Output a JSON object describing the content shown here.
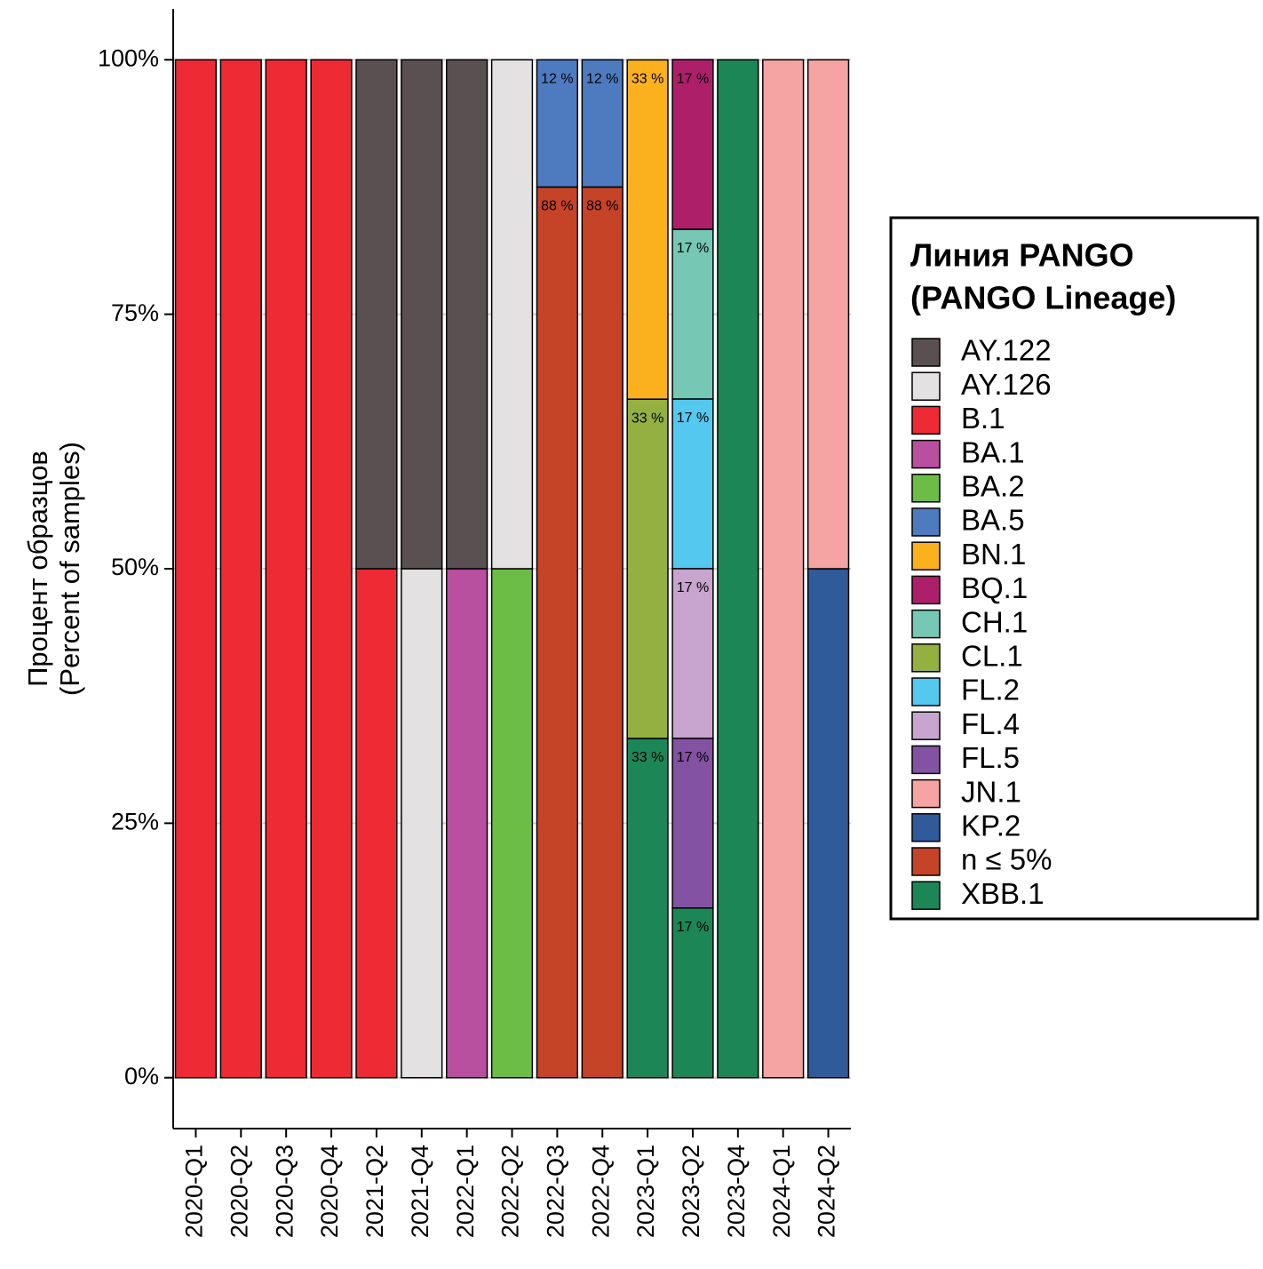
{
  "chart_data": {
    "type": "stacked_bar",
    "ylabel": [
      "Процент образцов",
      "(Percent of samples)"
    ],
    "legend_title": [
      "Линия PANGO",
      "(PANGO Lineage)"
    ],
    "legend_position": "right",
    "grid": true,
    "categories": [
      "2020-Q1",
      "2020-Q2",
      "2020-Q3",
      "2020-Q4",
      "2021-Q2",
      "2021-Q4",
      "2022-Q1",
      "2022-Q2",
      "2022-Q3",
      "2022-Q4",
      "2023-Q1",
      "2023-Q2",
      "2023-Q4",
      "2024-Q1",
      "2024-Q2"
    ],
    "ylim": [
      -5,
      105
    ],
    "yticks": [
      {
        "value": 0,
        "label": "0%"
      },
      {
        "value": 25,
        "label": "25%"
      },
      {
        "value": 50,
        "label": "50%"
      },
      {
        "value": 75,
        "label": "75%"
      },
      {
        "value": 100,
        "label": "100%"
      }
    ],
    "series": [
      {
        "name": "AY.122",
        "color": "#5a5052",
        "values": [
          0,
          0,
          0,
          0,
          50,
          50,
          50,
          0,
          0,
          0,
          0,
          0,
          0,
          0,
          0
        ]
      },
      {
        "name": "AY.126",
        "color": "#e3e1e2",
        "values": [
          0,
          0,
          0,
          0,
          0,
          50,
          0,
          50,
          0,
          0,
          0,
          0,
          0,
          0,
          0
        ]
      },
      {
        "name": "B.1",
        "color": "#ee2a35",
        "values": [
          100,
          100,
          100,
          100,
          50,
          0,
          0,
          0,
          0,
          0,
          0,
          0,
          0,
          0,
          0
        ]
      },
      {
        "name": "BA.1",
        "color": "#b94f9f",
        "values": [
          0,
          0,
          0,
          0,
          0,
          0,
          50,
          0,
          0,
          0,
          0,
          0,
          0,
          0,
          0
        ]
      },
      {
        "name": "BA.2",
        "color": "#6cbd45",
        "values": [
          0,
          0,
          0,
          0,
          0,
          0,
          0,
          50,
          0,
          0,
          0,
          0,
          0,
          0,
          0
        ]
      },
      {
        "name": "BA.5",
        "color": "#4e7bc0",
        "values": [
          0,
          0,
          0,
          0,
          0,
          0,
          0,
          0,
          12.5,
          12.5,
          0,
          0,
          0,
          0,
          0
        ],
        "value_labels": [
          null,
          null,
          null,
          null,
          null,
          null,
          null,
          null,
          "12 %",
          "12 %",
          null,
          null,
          null,
          null,
          null
        ]
      },
      {
        "name": "BN.1",
        "color": "#fbb01e",
        "values": [
          0,
          0,
          0,
          0,
          0,
          0,
          0,
          0,
          0,
          0,
          33.33,
          0,
          0,
          0,
          0
        ],
        "value_labels": [
          null,
          null,
          null,
          null,
          null,
          null,
          null,
          null,
          null,
          null,
          "33 %",
          null,
          null,
          null,
          null
        ]
      },
      {
        "name": "BQ.1",
        "color": "#ae1f6a",
        "values": [
          0,
          0,
          0,
          0,
          0,
          0,
          0,
          0,
          0,
          0,
          0,
          16.67,
          0,
          0,
          0
        ],
        "value_labels": [
          null,
          null,
          null,
          null,
          null,
          null,
          null,
          null,
          null,
          null,
          null,
          "17 %",
          null,
          null,
          null
        ]
      },
      {
        "name": "CH.1",
        "color": "#76c8b5",
        "values": [
          0,
          0,
          0,
          0,
          0,
          0,
          0,
          0,
          0,
          0,
          0,
          16.67,
          0,
          0,
          0
        ],
        "value_labels": [
          null,
          null,
          null,
          null,
          null,
          null,
          null,
          null,
          null,
          null,
          null,
          "17 %",
          null,
          null,
          null
        ]
      },
      {
        "name": "CL.1",
        "color": "#93b040",
        "values": [
          0,
          0,
          0,
          0,
          0,
          0,
          0,
          0,
          0,
          0,
          33.33,
          0,
          0,
          0,
          0
        ],
        "value_labels": [
          null,
          null,
          null,
          null,
          null,
          null,
          null,
          null,
          null,
          null,
          "33 %",
          null,
          null,
          null,
          null
        ]
      },
      {
        "name": "FL.2",
        "color": "#55c8ef",
        "values": [
          0,
          0,
          0,
          0,
          0,
          0,
          0,
          0,
          0,
          0,
          0,
          16.67,
          0,
          0,
          0
        ],
        "value_labels": [
          null,
          null,
          null,
          null,
          null,
          null,
          null,
          null,
          null,
          null,
          null,
          "17 %",
          null,
          null,
          null
        ]
      },
      {
        "name": "FL.4",
        "color": "#c7a5cf",
        "values": [
          0,
          0,
          0,
          0,
          0,
          0,
          0,
          0,
          0,
          0,
          0,
          16.67,
          0,
          0,
          0
        ],
        "value_labels": [
          null,
          null,
          null,
          null,
          null,
          null,
          null,
          null,
          null,
          null,
          null,
          "17 %",
          null,
          null,
          null
        ]
      },
      {
        "name": "FL.5",
        "color": "#8352a2",
        "values": [
          0,
          0,
          0,
          0,
          0,
          0,
          0,
          0,
          0,
          0,
          0,
          16.67,
          0,
          0,
          0
        ],
        "value_labels": [
          null,
          null,
          null,
          null,
          null,
          null,
          null,
          null,
          null,
          null,
          null,
          "17 %",
          null,
          null,
          null
        ]
      },
      {
        "name": "JN.1",
        "color": "#f6a3a3",
        "values": [
          0,
          0,
          0,
          0,
          0,
          0,
          0,
          0,
          0,
          0,
          0,
          0,
          0,
          100,
          50
        ]
      },
      {
        "name": "KP.2",
        "color": "#2f5b9a",
        "values": [
          0,
          0,
          0,
          0,
          0,
          0,
          0,
          0,
          0,
          0,
          0,
          0,
          0,
          0,
          50
        ]
      },
      {
        "name": "n ≤ 5%",
        "color": "#c54326",
        "values": [
          0,
          0,
          0,
          0,
          0,
          0,
          0,
          0,
          87.5,
          87.5,
          0,
          0,
          0,
          0,
          0
        ],
        "value_labels": [
          null,
          null,
          null,
          null,
          null,
          null,
          null,
          null,
          "88 %",
          "88 %",
          null,
          null,
          null,
          null,
          null
        ]
      },
      {
        "name": "XBB.1",
        "color": "#1d8657",
        "values": [
          0,
          0,
          0,
          0,
          0,
          0,
          0,
          0,
          0,
          0,
          33.33,
          16.67,
          100,
          0,
          0
        ],
        "value_labels": [
          null,
          null,
          null,
          null,
          null,
          null,
          null,
          null,
          null,
          null,
          "33 %",
          "17 %",
          null,
          null,
          null
        ]
      }
    ]
  }
}
